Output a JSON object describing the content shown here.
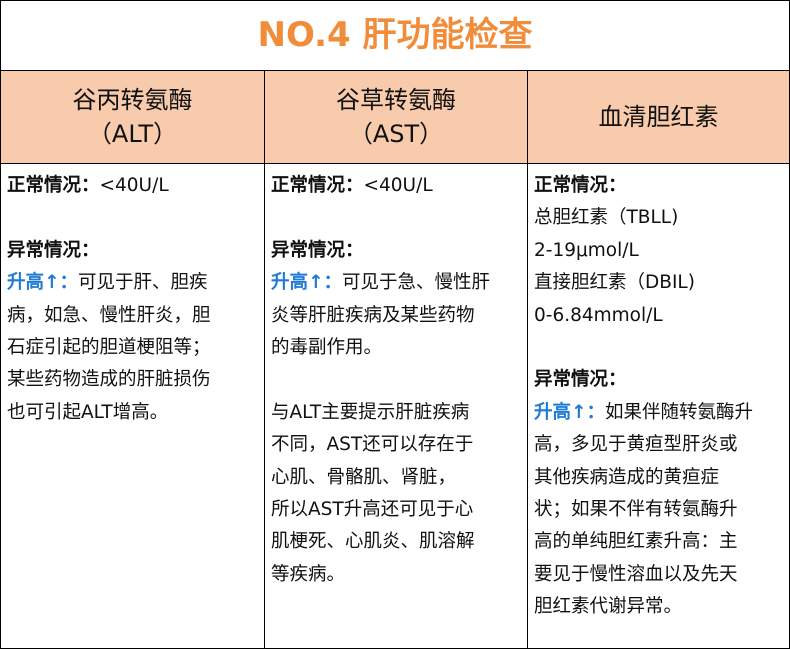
{
  "title": "NO.4 肝功能检查",
  "colors": {
    "title": "#f08c3a",
    "header_bg": "#f8cbad",
    "highlight": "#1e7bd6"
  },
  "columns": [
    {
      "header": [
        "谷丙转氨酶",
        "（ALT）"
      ],
      "lines": [
        {
          "bold": "正常情况：",
          "text": "<40U/L"
        },
        {
          "text": ""
        },
        {
          "bold": "异常情况：",
          "text": ""
        },
        {
          "blue": "升高↑：",
          "text": "可见于肝、胆疾"
        },
        {
          "text": "病，如急、慢性肝炎，胆"
        },
        {
          "text": "石症引起的胆道梗阻等；"
        },
        {
          "text": "某些药物造成的肝脏损伤"
        },
        {
          "text": "也可引起ALT增高。"
        }
      ]
    },
    {
      "header": [
        "谷草转氨酶",
        "（AST）"
      ],
      "lines": [
        {
          "bold": "正常情况：",
          "text": "<40U/L"
        },
        {
          "text": ""
        },
        {
          "bold": "异常情况：",
          "text": ""
        },
        {
          "blue": "升高↑：",
          "text": "可见于急、慢性肝"
        },
        {
          "text": "炎等肝脏疾病及某些药物"
        },
        {
          "text": "的毒副作用。"
        },
        {
          "text": ""
        },
        {
          "text": "与ALT主要提示肝脏疾病"
        },
        {
          "text": "不同，AST还可以存在于"
        },
        {
          "text": "心肌、骨骼肌、肾脏，"
        },
        {
          "text": "所以AST升高还可见于心"
        },
        {
          "text": "肌梗死、心肌炎、肌溶解"
        },
        {
          "text": "等疾病。"
        }
      ]
    },
    {
      "header": [
        "血清胆红素"
      ],
      "lines": [
        {
          "bold": "正常情况：",
          "text": ""
        },
        {
          "text": "总胆红素（TBLL)"
        },
        {
          "text": "2-19μmol/L"
        },
        {
          "text": "直接胆红素（DBIL)"
        },
        {
          "text": "0-6.84mmol/L"
        },
        {
          "text": ""
        },
        {
          "bold": "异常情况：",
          "text": ""
        },
        {
          "blue": "升高↑：",
          "text": "如果伴随转氨酶升"
        },
        {
          "text": "高，多见于黄疸型肝炎或"
        },
        {
          "text": "其他疾病造成的黄疸症"
        },
        {
          "text": "状；如果不伴有转氨酶升"
        },
        {
          "text": "高的单纯胆红素升高：主"
        },
        {
          "text": "要见于慢性溶血以及先天"
        },
        {
          "text": "胆红素代谢异常。"
        }
      ]
    }
  ]
}
